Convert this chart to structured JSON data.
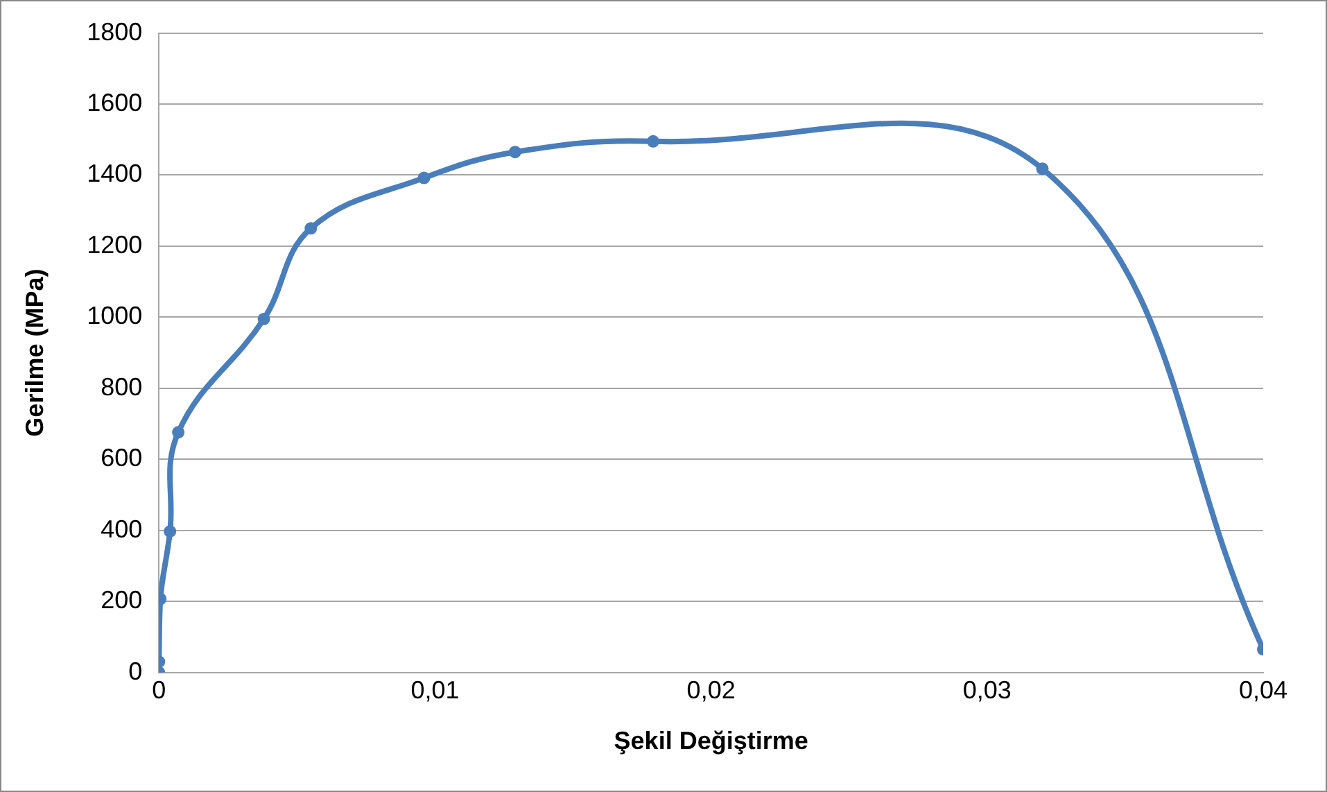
{
  "chart_data": {
    "type": "line",
    "xlabel": "Şekil Değiştirme",
    "ylabel": "Gerilme (MPa)",
    "x": [
      0,
      0,
      5e-05,
      0.0004,
      0.0007,
      0.0038,
      0.0055,
      0.0096,
      0.0129,
      0.0179,
      0.032,
      0.04
    ],
    "series": [
      {
        "color": "#4a7ebb",
        "values": [
          0,
          30,
          207,
          397,
          676,
          995,
          1250,
          1392,
          1465,
          1495,
          1418,
          65
        ]
      }
    ],
    "xlim": [
      0,
      0.04
    ],
    "xticks": [
      0,
      {
        "value": 0.01,
        "label": "0,01"
      },
      {
        "value": 0.02,
        "label": "0,02"
      },
      {
        "value": 0.03,
        "label": "0,03"
      },
      {
        "value": 0.04,
        "label": "0,04"
      }
    ],
    "ylim": [
      0,
      1800
    ],
    "yticks": [
      0,
      200,
      400,
      600,
      800,
      1000,
      1200,
      1400,
      1600,
      1800
    ],
    "grid": "y",
    "legend": false,
    "marker": "circle",
    "line_style": "solid"
  }
}
